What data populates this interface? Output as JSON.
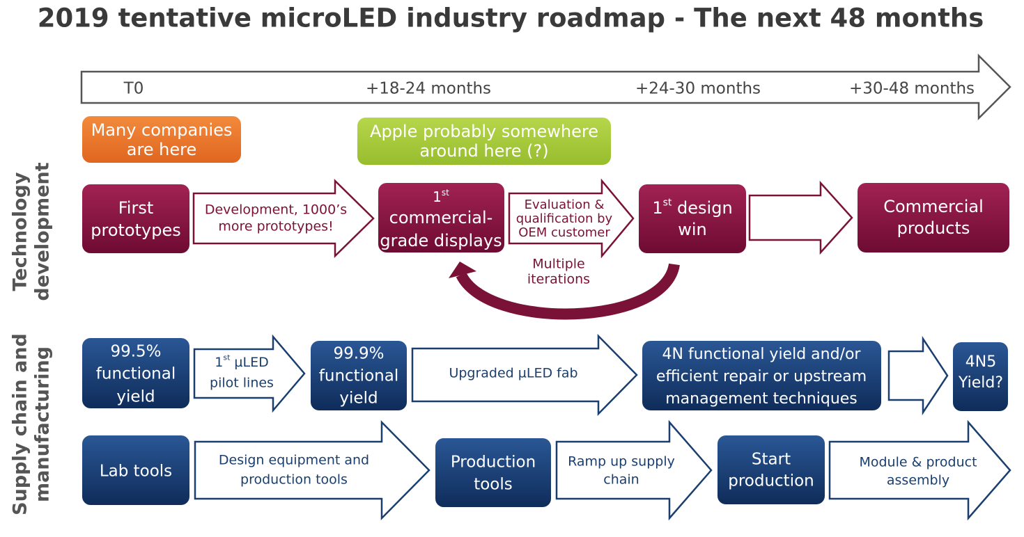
{
  "title": "2019 tentative microLED industry roadmap - The next 48 months",
  "timeline": {
    "labels": [
      "T0",
      "+18-24 months",
      "+24-30 months",
      "+30-48 months"
    ]
  },
  "callouts": [
    {
      "lines": [
        "Many companies",
        "are here"
      ]
    },
    {
      "lines": [
        "Apple probably somewhere",
        "around here (?)"
      ]
    }
  ],
  "sections": [
    {
      "lines": [
        "Technology",
        "development"
      ]
    },
    {
      "lines": [
        "Supply chain and",
        "manufacturing"
      ]
    }
  ],
  "technology_row": {
    "boxes": [
      {
        "lines": [
          "First",
          "prototypes"
        ]
      },
      {
        "base": "1",
        "sup": "st",
        "lines": [
          "commercial-",
          "grade displays"
        ]
      },
      {
        "base": "1",
        "sup": "st",
        "rest": " design",
        "lines": [
          "win"
        ]
      },
      {
        "lines": [
          "Commercial",
          "products"
        ]
      }
    ],
    "arrows": [
      {
        "lines": [
          "Development, 1000’s",
          "more prototypes!"
        ]
      },
      {
        "lines": [
          "Evaluation &",
          "qualification by",
          "OEM customer"
        ]
      }
    ],
    "loop_label": {
      "lines": [
        "Multiple",
        "iterations"
      ]
    }
  },
  "supply_row_1": {
    "boxes": [
      {
        "lines": [
          "99.5%",
          "functional",
          "yield"
        ]
      },
      {
        "lines": [
          "99.9%",
          "functional",
          "yield"
        ]
      },
      {
        "lines": [
          "4N functional yield and/or",
          "efficient repair or upstream",
          "management techniques"
        ]
      },
      {
        "lines": [
          "4N5",
          "Yield?"
        ]
      }
    ],
    "arrows": [
      {
        "base": "1",
        "sup": "st",
        "rest": " µLED",
        "lines": [
          "pilot lines"
        ]
      },
      {
        "lines": [
          "Upgraded µLED fab"
        ]
      }
    ]
  },
  "supply_row_2": {
    "boxes": [
      {
        "lines": [
          "Lab tools"
        ]
      },
      {
        "lines": [
          "Production",
          "tools"
        ]
      },
      {
        "lines": [
          "Start",
          "production"
        ]
      }
    ],
    "arrows": [
      {
        "lines": [
          "Design equipment and",
          "production tools"
        ]
      },
      {
        "lines": [
          "Ramp up supply",
          "chain"
        ]
      },
      {
        "lines": [
          "Module & product",
          "assembly"
        ]
      }
    ]
  }
}
